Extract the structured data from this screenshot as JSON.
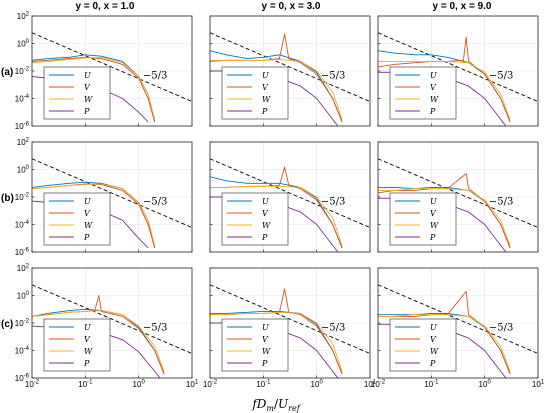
{
  "figure": {
    "column_titles": [
      "y = 0, x = 1.0",
      "y = 0, x = 3.0",
      "y = 0, x = 9.0"
    ],
    "row_labels": [
      "(a)",
      "(b)",
      "(c)"
    ],
    "xlabel_parts": {
      "f": "f",
      "D": "D",
      "m": "m",
      "sep": "/",
      "U": "U",
      "ref": "ref"
    },
    "slope_label": "−5/3",
    "legend_entries": [
      "U",
      "V",
      "W",
      "P"
    ]
  },
  "chart_data": {
    "type": "line",
    "layout": "3x3 grid of log-log spectra panels",
    "xscale": "log",
    "yscale": "log",
    "xlim": [
      0.01,
      10
    ],
    "ylim": [
      1e-06,
      100
    ],
    "xticks": [
      {
        "value": 0.01,
        "base": "10",
        "exp": "-2"
      },
      {
        "value": 0.1,
        "base": "10",
        "exp": "-1"
      },
      {
        "value": 1,
        "base": "10",
        "exp": "0"
      },
      {
        "value": 10,
        "base": "10",
        "exp": "1"
      }
    ],
    "yticks": [
      {
        "value": 1e-06,
        "base": "10",
        "exp": "-6"
      },
      {
        "value": 0.0001,
        "base": "10",
        "exp": "-4"
      },
      {
        "value": 0.01,
        "base": "10",
        "exp": "-2"
      },
      {
        "value": 1,
        "base": "10",
        "exp": "0"
      },
      {
        "value": 100,
        "base": "10",
        "exp": "2"
      }
    ],
    "grid": true,
    "legend_position": "bottom-left",
    "series_colors": {
      "U": "#0072BD",
      "V": "#D95319",
      "W": "#EDB120",
      "P": "#7E2F8E"
    },
    "reference_line": {
      "slope": -1.6667,
      "style": "dashed",
      "color": "#000000",
      "label": "−5/3"
    },
    "panels": [
      {
        "row": 0,
        "col": 0,
        "series": [
          {
            "name": "U",
            "x": [
              0.01,
              0.02,
              0.05,
              0.1,
              0.2,
              0.5,
              1,
              1.5,
              2
            ],
            "y": [
              0.06,
              0.08,
              0.1,
              0.15,
              0.12,
              0.05,
              0.004,
              0.0002,
              2e-06
            ]
          },
          {
            "name": "V",
            "x": [
              0.01,
              0.02,
              0.05,
              0.1,
              0.2,
              0.5,
              1,
              1.5,
              2
            ],
            "y": [
              0.05,
              0.06,
              0.08,
              0.1,
              0.08,
              0.03,
              0.003,
              0.0001,
              2e-06
            ]
          },
          {
            "name": "W",
            "x": [
              0.01,
              0.02,
              0.05,
              0.1,
              0.2,
              0.5,
              1,
              1.5,
              2
            ],
            "y": [
              0.04,
              0.05,
              0.07,
              0.09,
              0.1,
              0.04,
              0.004,
              0.0002,
              3e-06
            ]
          },
          {
            "name": "P",
            "x": [
              0.01,
              0.02,
              0.05,
              0.1,
              0.2,
              0.5,
              1,
              1.5
            ],
            "y": [
              0.004,
              0.003,
              0.002,
              0.001,
              0.0005,
              0.0001,
              1e-05,
              2e-06
            ]
          }
        ]
      },
      {
        "row": 0,
        "col": 1,
        "series": [
          {
            "name": "U",
            "x": [
              0.01,
              0.02,
              0.05,
              0.1,
              0.2,
              0.5,
              1,
              2,
              3
            ],
            "y": [
              0.3,
              0.15,
              0.08,
              0.1,
              0.15,
              0.05,
              0.008,
              0.0001,
              2e-06
            ]
          },
          {
            "name": "V",
            "x": [
              0.01,
              0.02,
              0.05,
              0.1,
              0.2,
              0.25,
              0.3,
              0.5,
              1,
              2,
              3
            ],
            "y": [
              0.05,
              0.06,
              0.06,
              0.06,
              0.08,
              5,
              0.08,
              0.04,
              0.006,
              0.0001,
              2e-06
            ]
          },
          {
            "name": "W",
            "x": [
              0.01,
              0.02,
              0.05,
              0.1,
              0.2,
              0.5,
              1,
              2,
              3
            ],
            "y": [
              0.06,
              0.06,
              0.06,
              0.06,
              0.07,
              0.05,
              0.01,
              0.0003,
              3e-06
            ]
          },
          {
            "name": "P",
            "x": [
              0.01,
              0.02,
              0.05,
              0.1,
              0.2,
              0.5,
              1,
              2,
              2.5
            ],
            "y": [
              0.01,
              0.01,
              0.008,
              0.006,
              0.003,
              0.0008,
              0.0001,
              3e-06,
              1e-06
            ]
          }
        ]
      },
      {
        "row": 0,
        "col": 2,
        "series": [
          {
            "name": "U",
            "x": [
              0.01,
              0.02,
              0.05,
              0.1,
              0.2,
              0.5,
              1,
              2,
              3
            ],
            "y": [
              0.3,
              0.2,
              0.15,
              0.15,
              0.1,
              0.04,
              0.006,
              0.0001,
              2e-06
            ]
          },
          {
            "name": "V",
            "x": [
              0.01,
              0.02,
              0.05,
              0.1,
              0.2,
              0.4,
              0.45,
              0.5,
              1,
              2,
              3
            ],
            "y": [
              0.02,
              0.03,
              0.04,
              0.05,
              0.05,
              0.06,
              3,
              0.05,
              0.006,
              0.0001,
              2e-06
            ]
          },
          {
            "name": "W",
            "x": [
              0.01,
              0.02,
              0.05,
              0.1,
              0.2,
              0.5,
              1,
              2,
              3
            ],
            "y": [
              0.05,
              0.05,
              0.05,
              0.05,
              0.05,
              0.04,
              0.008,
              0.0002,
              3e-06
            ]
          },
          {
            "name": "P",
            "x": [
              0.01,
              0.02,
              0.05,
              0.1,
              0.2,
              0.5,
              1,
              2,
              2.5
            ],
            "y": [
              0.008,
              0.008,
              0.006,
              0.005,
              0.003,
              0.0008,
              0.0001,
              3e-06,
              1e-06
            ]
          }
        ]
      },
      {
        "row": 1,
        "col": 0,
        "series": [
          {
            "name": "U",
            "x": [
              0.01,
              0.02,
              0.05,
              0.1,
              0.2,
              0.5,
              1,
              1.5,
              2
            ],
            "y": [
              0.05,
              0.07,
              0.1,
              0.12,
              0.1,
              0.04,
              0.004,
              0.0002,
              2e-06
            ]
          },
          {
            "name": "V",
            "x": [
              0.01,
              0.02,
              0.05,
              0.1,
              0.2,
              0.5,
              1,
              1.5,
              2
            ],
            "y": [
              0.04,
              0.05,
              0.07,
              0.09,
              0.08,
              0.03,
              0.003,
              0.0001,
              2e-06
            ]
          },
          {
            "name": "W",
            "x": [
              0.01,
              0.02,
              0.05,
              0.1,
              0.2,
              0.5,
              1,
              1.5,
              2
            ],
            "y": [
              0.04,
              0.05,
              0.07,
              0.08,
              0.09,
              0.04,
              0.004,
              0.0002,
              3e-06
            ]
          },
          {
            "name": "P",
            "x": [
              0.01,
              0.02,
              0.05,
              0.1,
              0.2,
              0.5,
              1,
              1.5
            ],
            "y": [
              0.005,
              0.004,
              0.003,
              0.002,
              0.001,
              0.0002,
              1e-05,
              2e-06
            ]
          }
        ]
      },
      {
        "row": 1,
        "col": 1,
        "series": [
          {
            "name": "U",
            "x": [
              0.01,
              0.02,
              0.05,
              0.1,
              0.2,
              0.5,
              1,
              2,
              3
            ],
            "y": [
              0.3,
              0.15,
              0.1,
              0.1,
              0.1,
              0.05,
              0.008,
              0.0001,
              2e-06
            ]
          },
          {
            "name": "V",
            "x": [
              0.01,
              0.02,
              0.05,
              0.1,
              0.2,
              0.25,
              0.3,
              0.5,
              1,
              2,
              3
            ],
            "y": [
              0.05,
              0.05,
              0.06,
              0.06,
              0.07,
              1.5,
              0.07,
              0.04,
              0.006,
              0.0001,
              2e-06
            ]
          },
          {
            "name": "W",
            "x": [
              0.01,
              0.02,
              0.05,
              0.1,
              0.2,
              0.5,
              1,
              2,
              3
            ],
            "y": [
              0.05,
              0.05,
              0.06,
              0.06,
              0.06,
              0.05,
              0.01,
              0.0003,
              3e-06
            ]
          },
          {
            "name": "P",
            "x": [
              0.01,
              0.02,
              0.05,
              0.1,
              0.2,
              0.5,
              1,
              2,
              2.5
            ],
            "y": [
              0.01,
              0.01,
              0.008,
              0.006,
              0.003,
              0.0008,
              0.0001,
              3e-06,
              1e-06
            ]
          }
        ]
      },
      {
        "row": 1,
        "col": 2,
        "series": [
          {
            "name": "U",
            "x": [
              0.01,
              0.02,
              0.05,
              0.1,
              0.2,
              0.5,
              1,
              2,
              3
            ],
            "y": [
              0.05,
              0.05,
              0.04,
              0.05,
              0.05,
              0.03,
              0.005,
              0.0001,
              2e-06
            ]
          },
          {
            "name": "V",
            "x": [
              0.01,
              0.02,
              0.05,
              0.1,
              0.2,
              0.45,
              0.5,
              1,
              2,
              3
            ],
            "y": [
              0.02,
              0.03,
              0.03,
              0.04,
              0.04,
              0.5,
              0.04,
              0.005,
              0.0001,
              2e-06
            ]
          },
          {
            "name": "W",
            "x": [
              0.01,
              0.02,
              0.05,
              0.1,
              0.2,
              0.5,
              1,
              2,
              3
            ],
            "y": [
              0.03,
              0.03,
              0.04,
              0.04,
              0.04,
              0.03,
              0.006,
              0.0002,
              3e-06
            ]
          },
          {
            "name": "P",
            "x": [
              0.01,
              0.02,
              0.05,
              0.1,
              0.2,
              0.5,
              1,
              2,
              2.5
            ],
            "y": [
              0.008,
              0.008,
              0.006,
              0.005,
              0.003,
              0.0008,
              0.0001,
              3e-06,
              1e-06
            ]
          }
        ]
      },
      {
        "row": 2,
        "col": 0,
        "series": [
          {
            "name": "U",
            "x": [
              0.01,
              0.02,
              0.05,
              0.1,
              0.2,
              0.5,
              1,
              2,
              3
            ],
            "y": [
              0.03,
              0.05,
              0.08,
              0.1,
              0.08,
              0.04,
              0.005,
              0.0001,
              2e-06
            ]
          },
          {
            "name": "V",
            "x": [
              0.01,
              0.02,
              0.05,
              0.1,
              0.15,
              0.18,
              0.2,
              0.5,
              1,
              2,
              3
            ],
            "y": [
              0.03,
              0.04,
              0.06,
              0.07,
              0.08,
              1,
              0.07,
              0.03,
              0.004,
              0.0001,
              2e-06
            ]
          },
          {
            "name": "W",
            "x": [
              0.01,
              0.02,
              0.05,
              0.1,
              0.2,
              0.5,
              1,
              2,
              3
            ],
            "y": [
              0.03,
              0.04,
              0.06,
              0.07,
              0.08,
              0.04,
              0.006,
              0.0002,
              3e-06
            ]
          },
          {
            "name": "P",
            "x": [
              0.01,
              0.02,
              0.05,
              0.1,
              0.2,
              0.5,
              1,
              2,
              2.5
            ],
            "y": [
              0.006,
              0.005,
              0.004,
              0.003,
              0.002,
              0.0006,
              8e-05,
              3e-06,
              1e-06
            ]
          }
        ]
      },
      {
        "row": 2,
        "col": 1,
        "series": [
          {
            "name": "U",
            "x": [
              0.01,
              0.02,
              0.05,
              0.1,
              0.2,
              0.5,
              1,
              2,
              3
            ],
            "y": [
              0.05,
              0.05,
              0.06,
              0.07,
              0.07,
              0.05,
              0.008,
              0.0001,
              2e-06
            ]
          },
          {
            "name": "V",
            "x": [
              0.01,
              0.02,
              0.05,
              0.1,
              0.2,
              0.25,
              0.3,
              0.5,
              1,
              2,
              3
            ],
            "y": [
              0.04,
              0.04,
              0.05,
              0.05,
              0.06,
              3,
              0.06,
              0.04,
              0.006,
              0.0001,
              2e-06
            ]
          },
          {
            "name": "W",
            "x": [
              0.01,
              0.02,
              0.05,
              0.1,
              0.2,
              0.5,
              1,
              2,
              3
            ],
            "y": [
              0.04,
              0.04,
              0.05,
              0.05,
              0.06,
              0.05,
              0.01,
              0.0003,
              3e-06
            ]
          },
          {
            "name": "P",
            "x": [
              0.01,
              0.02,
              0.05,
              0.1,
              0.2,
              0.5,
              1,
              2,
              2.5
            ],
            "y": [
              0.01,
              0.01,
              0.008,
              0.006,
              0.003,
              0.0008,
              0.0001,
              3e-06,
              1e-06
            ]
          }
        ]
      },
      {
        "row": 2,
        "col": 2,
        "series": [
          {
            "name": "U",
            "x": [
              0.01,
              0.02,
              0.05,
              0.1,
              0.2,
              0.5,
              1,
              2,
              3
            ],
            "y": [
              0.04,
              0.04,
              0.04,
              0.05,
              0.05,
              0.03,
              0.005,
              0.0001,
              2e-06
            ]
          },
          {
            "name": "V",
            "x": [
              0.01,
              0.02,
              0.05,
              0.1,
              0.2,
              0.45,
              0.5,
              1,
              2,
              3
            ],
            "y": [
              0.03,
              0.03,
              0.03,
              0.04,
              0.04,
              2,
              0.04,
              0.005,
              0.0001,
              2e-06
            ]
          },
          {
            "name": "W",
            "x": [
              0.01,
              0.02,
              0.05,
              0.1,
              0.2,
              0.5,
              1,
              2,
              3
            ],
            "y": [
              0.03,
              0.03,
              0.04,
              0.04,
              0.04,
              0.03,
              0.006,
              0.0002,
              3e-06
            ]
          },
          {
            "name": "P",
            "x": [
              0.01,
              0.02,
              0.05,
              0.1,
              0.2,
              0.5,
              1,
              2,
              2.5
            ],
            "y": [
              0.008,
              0.008,
              0.006,
              0.005,
              0.003,
              0.0008,
              0.0001,
              3e-06,
              1e-06
            ]
          }
        ]
      }
    ]
  }
}
